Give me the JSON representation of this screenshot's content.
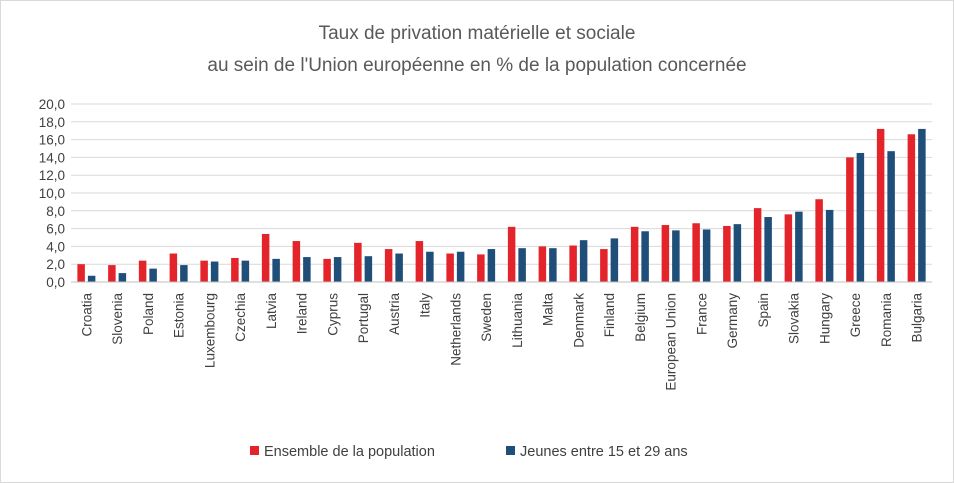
{
  "chart_data": {
    "type": "bar",
    "title": "Taux de privation matérielle et sociale",
    "subtitle": "au sein de l'Union européenne en % de la population concernée",
    "xlabel": "",
    "ylabel": "",
    "ylim": [
      0,
      20
    ],
    "y_ticks": [
      "0,0",
      "2,0",
      "4,0",
      "6,0",
      "8,0",
      "10,0",
      "12,0",
      "14,0",
      "16,0",
      "18,0",
      "20,0"
    ],
    "grid": true,
    "legend_position": "bottom",
    "categories": [
      "Croatia",
      "Slovenia",
      "Poland",
      "Estonia",
      "Luxembourg",
      "Czechia",
      "Latvia",
      "Ireland",
      "Cyprus",
      "Portugal",
      "Austria",
      "Italy",
      "Netherlands",
      "Sweden",
      "Lithuania",
      "Malta",
      "Denmark",
      "Finland",
      "Belgium",
      "European Union",
      "France",
      "Germany",
      "Spain",
      "Slovakia",
      "Hungary",
      "Greece",
      "Romania",
      "Bulgaria"
    ],
    "series": [
      {
        "name": "Ensemble de la population",
        "color": "#e3242b",
        "values": [
          2.0,
          1.9,
          2.4,
          3.2,
          2.4,
          2.7,
          5.4,
          4.6,
          2.6,
          4.4,
          3.7,
          4.6,
          3.2,
          3.1,
          6.2,
          4.0,
          4.1,
          3.7,
          6.2,
          6.4,
          6.6,
          6.3,
          8.3,
          7.6,
          9.3,
          14.0,
          17.2,
          16.6
        ]
      },
      {
        "name": "Jeunes entre 15 et 29 ans",
        "color": "#1f4e79",
        "values": [
          0.7,
          1.0,
          1.5,
          1.9,
          2.3,
          2.4,
          2.6,
          2.8,
          2.8,
          2.9,
          3.2,
          3.4,
          3.4,
          3.7,
          3.8,
          3.8,
          4.7,
          4.9,
          5.7,
          5.8,
          5.9,
          6.5,
          7.3,
          7.9,
          8.1,
          14.5,
          14.7,
          17.2
        ]
      }
    ]
  }
}
